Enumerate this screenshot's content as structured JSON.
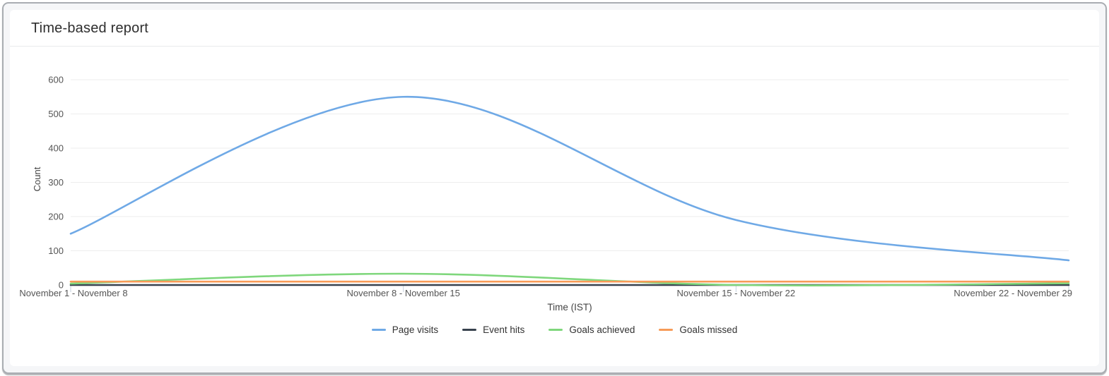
{
  "card": {
    "title": "Time-based report"
  },
  "chart_data": {
    "type": "line",
    "curve": "smooth",
    "title": "Time-based report",
    "xlabel": "Time (IST)",
    "ylabel": "Count",
    "categories": [
      "November 1 - November 8",
      "November 8 - November 15",
      "November 15 - November 22",
      "November 22 - November 29"
    ],
    "series": [
      {
        "name": "Page visits",
        "color": "#6fa9e6",
        "values": [
          150,
          550,
          190,
          72
        ]
      },
      {
        "name": "Event hits",
        "color": "#38424e",
        "values": [
          0,
          0,
          0,
          0
        ]
      },
      {
        "name": "Goals achieved",
        "color": "#7fd77c",
        "values": [
          4,
          33,
          0,
          5
        ]
      },
      {
        "name": "Goals missed",
        "color": "#f79b58",
        "values": [
          10,
          10,
          10,
          10
        ]
      }
    ],
    "ylim": [
      0,
      600
    ],
    "yticks": [
      0,
      100,
      200,
      300,
      400,
      500,
      600
    ],
    "grid": "horizontal",
    "legend_position": "bottom"
  },
  "style": {
    "grid_color": "#ededed",
    "axis_color": "#cdd7e0",
    "tick_mark_color": "#c6d2de",
    "tick_label_color": "#555555",
    "axis_title_color": "#444444",
    "legend_text_color": "#333333"
  }
}
